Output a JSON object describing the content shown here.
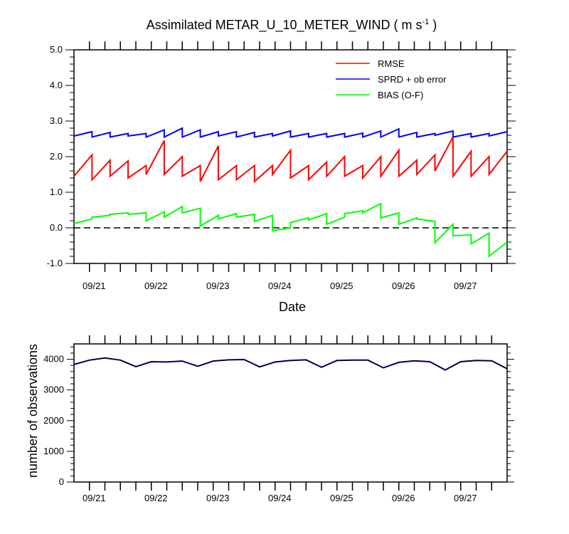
{
  "chart_data": [
    {
      "type": "line",
      "title": "Assimilated METAR_U_10_METER_WIND ( m s",
      "title_superscript": "-1",
      "title_close": " )",
      "xlabel": "Date",
      "ylabel": "",
      "xlim": [
        "09/20 18Z",
        "09/27 18Z"
      ],
      "ylim": [
        -1.0,
        5.0
      ],
      "yticks": [
        "5.0",
        "4.0",
        "3.0",
        "2.0",
        "1.0",
        "0.0",
        "-1.0"
      ],
      "xticklabels": [
        "09/21",
        "09/22",
        "09/23",
        "09/24",
        "09/25",
        "09/26",
        "09/27"
      ],
      "zero_line": true,
      "legend_position": "top-right",
      "colors": {
        "RMSE": "#ff0000",
        "SPRD + ob error": "#0000ff",
        "BIAS (O-F)": "#00ff00"
      },
      "series": [
        {
          "name": "RMSE",
          "color": "#ff0000",
          "pairs": [
            [
              0,
              1.45,
              2.05
            ],
            [
              1,
              1.35,
              1.9
            ],
            [
              2,
              1.45,
              1.88
            ],
            [
              3,
              1.4,
              1.75
            ],
            [
              4,
              1.5,
              2.45
            ],
            [
              5,
              1.5,
              2.0
            ],
            [
              6,
              1.45,
              1.75
            ],
            [
              7,
              1.3,
              2.3
            ],
            [
              8,
              1.35,
              1.75
            ],
            [
              9,
              1.35,
              1.75
            ],
            [
              10,
              1.3,
              1.75
            ],
            [
              11,
              1.5,
              2.18
            ],
            [
              12,
              1.4,
              1.75
            ],
            [
              13,
              1.35,
              1.85
            ],
            [
              14,
              1.45,
              2.0
            ],
            [
              15,
              1.45,
              1.75
            ],
            [
              16,
              1.4,
              2.0
            ],
            [
              17,
              1.45,
              2.18
            ],
            [
              18,
              1.45,
              1.9
            ],
            [
              19,
              1.5,
              2.05
            ],
            [
              20,
              1.6,
              2.55
            ],
            [
              21,
              1.45,
              2.15
            ],
            [
              22,
              1.45,
              2.0
            ],
            [
              23,
              1.5,
              2.15
            ]
          ]
        },
        {
          "name": "SPRD + ob error",
          "color": "#0000ff",
          "pairs": [
            [
              0,
              2.58,
              2.7
            ],
            [
              1,
              2.55,
              2.68
            ],
            [
              2,
              2.55,
              2.65
            ],
            [
              3,
              2.58,
              2.65
            ],
            [
              4,
              2.55,
              2.75
            ],
            [
              5,
              2.55,
              2.8
            ],
            [
              6,
              2.55,
              2.75
            ],
            [
              7,
              2.55,
              2.7
            ],
            [
              8,
              2.58,
              2.7
            ],
            [
              9,
              2.55,
              2.68
            ],
            [
              10,
              2.55,
              2.65
            ],
            [
              11,
              2.58,
              2.72
            ],
            [
              12,
              2.55,
              2.65
            ],
            [
              13,
              2.55,
              2.65
            ],
            [
              14,
              2.55,
              2.65
            ],
            [
              15,
              2.55,
              2.66
            ],
            [
              16,
              2.55,
              2.72
            ],
            [
              17,
              2.55,
              2.78
            ],
            [
              18,
              2.55,
              2.68
            ],
            [
              19,
              2.55,
              2.65
            ],
            [
              20,
              2.6,
              2.72
            ],
            [
              21,
              2.55,
              2.65
            ],
            [
              22,
              2.55,
              2.65
            ],
            [
              23,
              2.58,
              2.7
            ]
          ]
        },
        {
          "name": "BIAS (O-F)",
          "color": "#00ff00",
          "pairs": [
            [
              0,
              0.12,
              0.25
            ],
            [
              1,
              0.3,
              0.35
            ],
            [
              2,
              0.38,
              0.42
            ],
            [
              3,
              0.38,
              0.42
            ],
            [
              4,
              0.2,
              0.45
            ],
            [
              5,
              0.3,
              0.6
            ],
            [
              6,
              0.42,
              0.55
            ],
            [
              7,
              0.05,
              0.35
            ],
            [
              8,
              0.25,
              0.4
            ],
            [
              9,
              0.3,
              0.38
            ],
            [
              10,
              0.18,
              0.35
            ],
            [
              11,
              -0.08,
              0.0
            ],
            [
              12,
              0.15,
              0.28
            ],
            [
              13,
              0.22,
              0.4
            ],
            [
              14,
              0.1,
              0.3
            ],
            [
              15,
              0.4,
              0.48
            ],
            [
              16,
              0.42,
              0.68
            ],
            [
              17,
              0.28,
              0.42
            ],
            [
              18,
              0.1,
              0.28
            ],
            [
              19,
              0.25,
              0.18
            ],
            [
              20,
              -0.42,
              0.1
            ],
            [
              21,
              -0.22,
              -0.2
            ],
            [
              22,
              -0.45,
              -0.15
            ],
            [
              23,
              -0.8,
              -0.4
            ]
          ]
        }
      ]
    },
    {
      "type": "line",
      "title": "",
      "xlabel": "",
      "ylabel": "number of observations",
      "xlim": [
        "09/20 18Z",
        "09/27 18Z"
      ],
      "ylim": [
        0,
        4500
      ],
      "yticks": [
        "0",
        "1000",
        "2000",
        "3000",
        "4000"
      ],
      "xticklabels": [
        "09/21",
        "09/22",
        "09/23",
        "09/24",
        "09/25",
        "09/26",
        "09/27"
      ],
      "series": [
        {
          "color": "#000080",
          "values": [
            3830,
            3970,
            4040,
            3970,
            3760,
            3920,
            3910,
            3940,
            3770,
            3940,
            3980,
            3990,
            3750,
            3910,
            3960,
            3980,
            3740,
            3960,
            3970,
            3970,
            3720,
            3900,
            3950,
            3920,
            3650,
            3920,
            3960,
            3950,
            3690
          ]
        }
      ]
    }
  ]
}
